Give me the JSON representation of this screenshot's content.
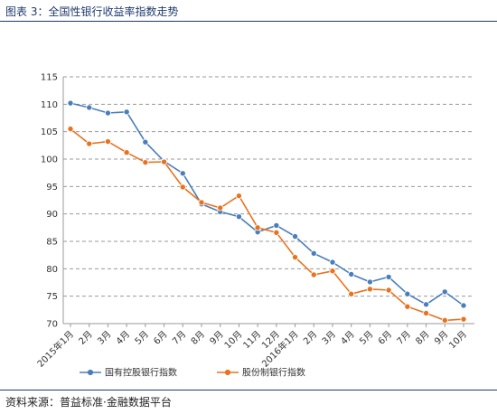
{
  "figure": {
    "title": "图表 3：全国性银行收益率指数走势",
    "source": "资料来源：普益标准·金融数据平台"
  },
  "colors": {
    "series_1": "#4a7ebb",
    "series_2": "#e8731e",
    "grid": "#999999",
    "title": "#1f3a6b"
  },
  "chart_data": {
    "type": "line",
    "categories": [
      "2015年1月",
      "2月",
      "3月",
      "4月",
      "5月",
      "6月",
      "7月",
      "8月",
      "9月",
      "10月",
      "11月",
      "12月",
      "2016年1月",
      "2月",
      "3月",
      "4月",
      "5月",
      "6月",
      "7月",
      "8月",
      "9月",
      "10月"
    ],
    "series": [
      {
        "name": "国有控股银行指数",
        "values": [
          110.2,
          109.4,
          108.4,
          108.6,
          103.1,
          99.6,
          97.4,
          91.8,
          90.4,
          89.5,
          86.7,
          87.9,
          85.9,
          82.8,
          81.2,
          79.0,
          77.6,
          78.5,
          75.4,
          73.5,
          75.8,
          73.3
        ]
      },
      {
        "name": "股份制银行指数",
        "values": [
          105.5,
          102.8,
          103.2,
          101.2,
          99.4,
          99.5,
          94.9,
          92.1,
          91.1,
          93.3,
          87.5,
          86.6,
          82.1,
          78.9,
          79.6,
          75.4,
          76.3,
          76.1,
          73.1,
          71.9,
          70.6,
          70.8
        ]
      }
    ],
    "yticks": [
      70,
      75,
      80,
      85,
      90,
      95,
      100,
      105,
      110,
      115
    ],
    "ylim": [
      70,
      115
    ],
    "grid": "horizontal dashed",
    "legend": "bottom",
    "xlabel": "",
    "ylabel": ""
  }
}
